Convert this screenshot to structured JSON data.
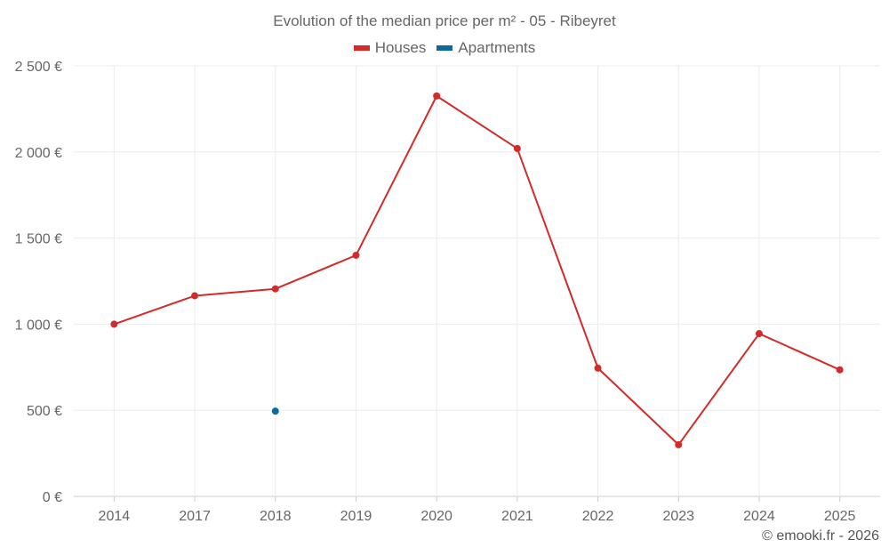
{
  "chart_data": {
    "type": "line",
    "title": "Evolution of the median price per m² - 05 - Ribeyret",
    "categories": [
      "2014",
      "2017",
      "2018",
      "2019",
      "2020",
      "2021",
      "2022",
      "2023",
      "2024",
      "2025"
    ],
    "series": [
      {
        "name": "Houses",
        "color": "#d32a2a",
        "values": [
          1000,
          1165,
          1205,
          1400,
          2325,
          2020,
          745,
          300,
          945,
          735
        ]
      },
      {
        "name": "Apartments",
        "color": "#0b6a99",
        "values": [
          null,
          null,
          495,
          null,
          null,
          null,
          null,
          null,
          null,
          null
        ]
      }
    ],
    "ylim": [
      0,
      2500
    ],
    "y_ticks": [
      0,
      500,
      1000,
      1500,
      2000,
      2500
    ],
    "y_tick_labels": [
      "0 €",
      "500 €",
      "1 000 €",
      "1 500 €",
      "2 000 €",
      "2 500 €"
    ],
    "grid": true,
    "legend_position": "top-center"
  },
  "credit": "© emooki.fr - 2026"
}
